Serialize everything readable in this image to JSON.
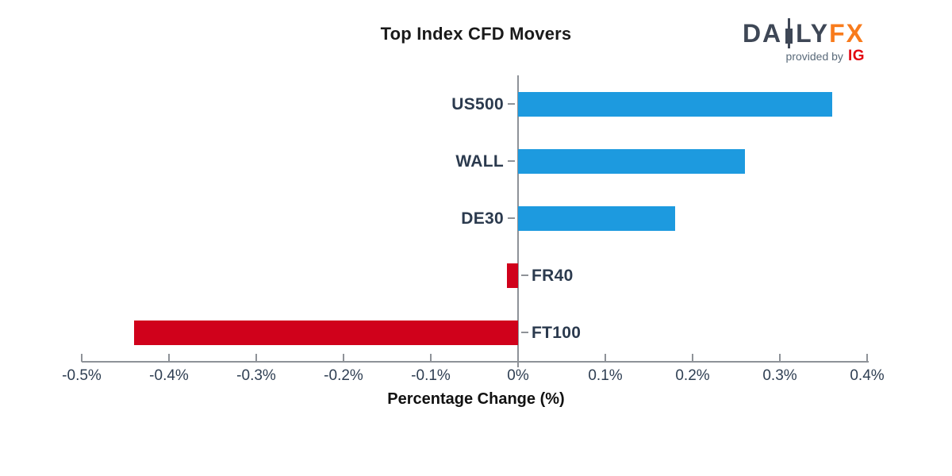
{
  "title": "Top Index CFD Movers",
  "logo": {
    "brand_prefix": "DA",
    "brand_suffix": "LY",
    "brand_accent": "FX",
    "tagline": "provided by",
    "partner": "IG"
  },
  "colors": {
    "positive": "#1d9adf",
    "negative": "#d0011b",
    "axis": "#8e9298",
    "tick_label": "#2e3e52",
    "category_label": "#2b3a4e",
    "title_text": "#1a1a1a",
    "brand_dark": "#3e4756",
    "brand_orange": "#f87b1c",
    "partner_red": "#e3000f",
    "tagline_gray": "#5a6a7a"
  },
  "chart_data": {
    "type": "bar",
    "orientation": "horizontal",
    "title": "Top Index CFD Movers",
    "xlabel": "Percentage Change (%)",
    "categories": [
      "US500",
      "WALL",
      "DE30",
      "FR40",
      "FT100"
    ],
    "values": [
      0.36,
      0.26,
      0.18,
      -0.01,
      -0.44
    ],
    "unit": "%",
    "xlim": [
      -0.5,
      0.4
    ],
    "xticks": [
      -0.5,
      -0.4,
      -0.3,
      -0.2,
      -0.1,
      0,
      0.1,
      0.2,
      0.3,
      0.4
    ],
    "xtick_labels": [
      "-0.5%",
      "-0.4%",
      "-0.3%",
      "-0.2%",
      "-0.1%",
      "0%",
      "0.1%",
      "0.2%",
      "0.3%",
      "0.4%"
    ],
    "grid": false,
    "legend": false,
    "bar_color_positive": "#1d9adf",
    "bar_color_negative": "#d0011b"
  }
}
